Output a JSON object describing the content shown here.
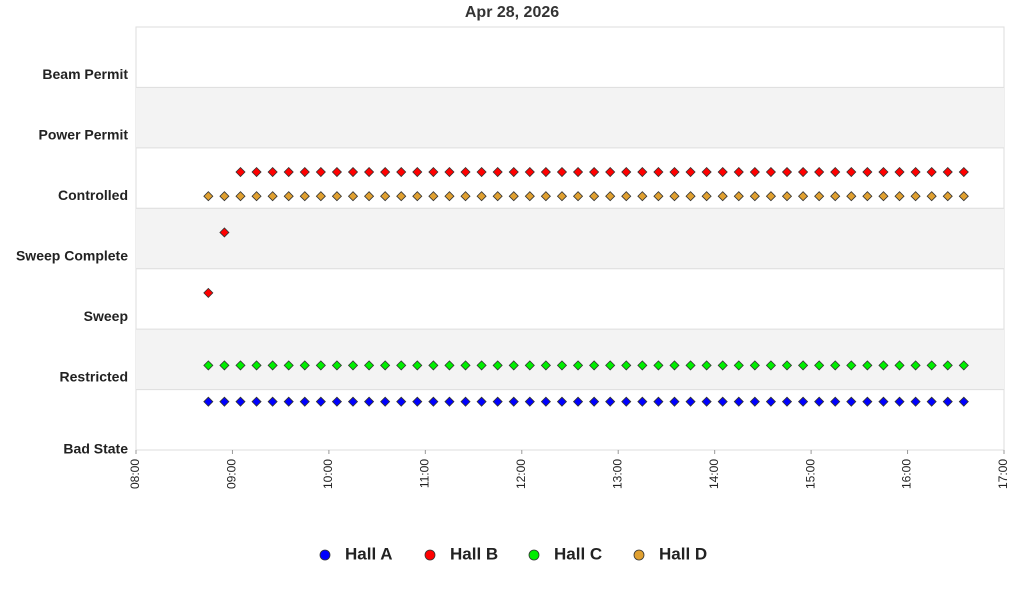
{
  "chart_data": {
    "type": "scatter",
    "title": "Apr 28, 2026",
    "x": [
      "08:45",
      "08:55",
      "09:05",
      "09:15",
      "09:25",
      "09:35",
      "09:45",
      "09:55",
      "10:05",
      "10:15",
      "10:25",
      "10:35",
      "10:45",
      "10:55",
      "11:05",
      "11:15",
      "11:25",
      "11:35",
      "11:45",
      "11:55",
      "12:05",
      "12:15",
      "12:25",
      "12:35",
      "12:45",
      "12:55",
      "13:05",
      "13:15",
      "13:25",
      "13:35",
      "13:45",
      "13:55",
      "14:05",
      "14:15",
      "14:25",
      "14:35",
      "14:45",
      "14:55",
      "15:05",
      "15:15",
      "15:25",
      "15:35",
      "15:45",
      "15:55",
      "16:05",
      "16:15",
      "16:25",
      "16:35"
    ],
    "xlim": [
      "08:00",
      "17:00"
    ],
    "xticks": [
      "08:00",
      "09:00",
      "10:00",
      "11:00",
      "12:00",
      "13:00",
      "14:00",
      "15:00",
      "16:00",
      "17:00"
    ],
    "ylim": [
      0,
      7
    ],
    "yticks": [
      {
        "value": 0,
        "label": "Bad State"
      },
      {
        "value": 1,
        "label": "Restricted"
      },
      {
        "value": 2,
        "label": "Sweep"
      },
      {
        "value": 3,
        "label": "Sweep Complete"
      },
      {
        "value": 4,
        "label": "Controlled"
      },
      {
        "value": 5,
        "label": "Power Permit"
      },
      {
        "value": 6,
        "label": "Beam Permit"
      }
    ],
    "alternating_bands": true,
    "series": [
      {
        "name": "Hall A",
        "color": "#0000ff",
        "values": [
          0.8,
          0.8,
          0.8,
          0.8,
          0.8,
          0.8,
          0.8,
          0.8,
          0.8,
          0.8,
          0.8,
          0.8,
          0.8,
          0.8,
          0.8,
          0.8,
          0.8,
          0.8,
          0.8,
          0.8,
          0.8,
          0.8,
          0.8,
          0.8,
          0.8,
          0.8,
          0.8,
          0.8,
          0.8,
          0.8,
          0.8,
          0.8,
          0.8,
          0.8,
          0.8,
          0.8,
          0.8,
          0.8,
          0.8,
          0.8,
          0.8,
          0.8,
          0.8,
          0.8,
          0.8,
          0.8,
          0.8,
          0.8
        ]
      },
      {
        "name": "Hall B",
        "color": "#ff0000",
        "values": [
          2.6,
          3.6,
          4.6,
          4.6,
          4.6,
          4.6,
          4.6,
          4.6,
          4.6,
          4.6,
          4.6,
          4.6,
          4.6,
          4.6,
          4.6,
          4.6,
          4.6,
          4.6,
          4.6,
          4.6,
          4.6,
          4.6,
          4.6,
          4.6,
          4.6,
          4.6,
          4.6,
          4.6,
          4.6,
          4.6,
          4.6,
          4.6,
          4.6,
          4.6,
          4.6,
          4.6,
          4.6,
          4.6,
          4.6,
          4.6,
          4.6,
          4.6,
          4.6,
          4.6,
          4.6,
          4.6,
          4.6,
          4.6
        ]
      },
      {
        "name": "Hall C",
        "color": "#00ee00",
        "values": [
          1.4,
          1.4,
          1.4,
          1.4,
          1.4,
          1.4,
          1.4,
          1.4,
          1.4,
          1.4,
          1.4,
          1.4,
          1.4,
          1.4,
          1.4,
          1.4,
          1.4,
          1.4,
          1.4,
          1.4,
          1.4,
          1.4,
          1.4,
          1.4,
          1.4,
          1.4,
          1.4,
          1.4,
          1.4,
          1.4,
          1.4,
          1.4,
          1.4,
          1.4,
          1.4,
          1.4,
          1.4,
          1.4,
          1.4,
          1.4,
          1.4,
          1.4,
          1.4,
          1.4,
          1.4,
          1.4,
          1.4,
          1.4
        ]
      },
      {
        "name": "Hall D",
        "color": "#e0a030",
        "values": [
          4.2,
          4.2,
          4.2,
          4.2,
          4.2,
          4.2,
          4.2,
          4.2,
          4.2,
          4.2,
          4.2,
          4.2,
          4.2,
          4.2,
          4.2,
          4.2,
          4.2,
          4.2,
          4.2,
          4.2,
          4.2,
          4.2,
          4.2,
          4.2,
          4.2,
          4.2,
          4.2,
          4.2,
          4.2,
          4.2,
          4.2,
          4.2,
          4.2,
          4.2,
          4.2,
          4.2,
          4.2,
          4.2,
          4.2,
          4.2,
          4.2,
          4.2,
          4.2,
          4.2,
          4.2,
          4.2,
          4.2,
          4.2
        ]
      }
    ],
    "legend": "bottom"
  }
}
